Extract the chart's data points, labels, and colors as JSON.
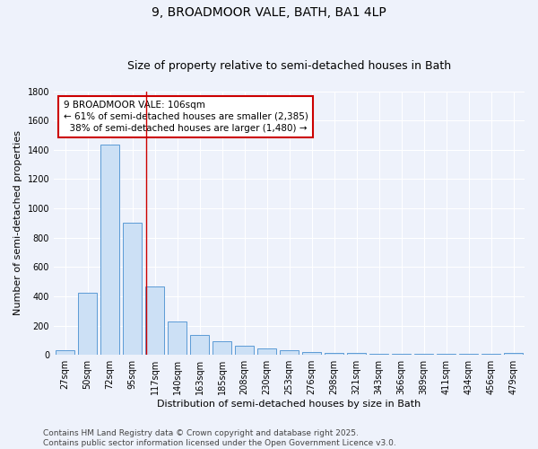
{
  "title": "9, BROADMOOR VALE, BATH, BA1 4LP",
  "subtitle": "Size of property relative to semi-detached houses in Bath",
  "xlabel": "Distribution of semi-detached houses by size in Bath",
  "ylabel": "Number of semi-detached properties",
  "bar_labels": [
    "27sqm",
    "50sqm",
    "72sqm",
    "95sqm",
    "117sqm",
    "140sqm",
    "163sqm",
    "185sqm",
    "208sqm",
    "230sqm",
    "253sqm",
    "276sqm",
    "298sqm",
    "321sqm",
    "343sqm",
    "366sqm",
    "389sqm",
    "411sqm",
    "434sqm",
    "456sqm",
    "479sqm"
  ],
  "bar_values": [
    30,
    425,
    1435,
    900,
    465,
    225,
    135,
    95,
    65,
    45,
    30,
    20,
    15,
    12,
    10,
    8,
    8,
    8,
    6,
    8,
    15
  ],
  "bar_color": "#cce0f5",
  "bar_edge_color": "#5b9bd5",
  "background_color": "#eef2fb",
  "grid_color": "#ffffff",
  "property_label": "9 BROADMOOR VALE: 106sqm",
  "pct_smaller": 61,
  "count_smaller": 2385,
  "pct_larger": 38,
  "count_larger": 1480,
  "vline_color": "#cc0000",
  "annotation_box_color": "#ffffff",
  "annotation_box_edge": "#cc0000",
  "ylim": [
    0,
    1800
  ],
  "footer_line1": "Contains HM Land Registry data © Crown copyright and database right 2025.",
  "footer_line2": "Contains public sector information licensed under the Open Government Licence v3.0.",
  "title_fontsize": 10,
  "subtitle_fontsize": 9,
  "axis_label_fontsize": 8,
  "tick_fontsize": 7,
  "annotation_fontsize": 7.5,
  "footer_fontsize": 6.5,
  "vline_x": 3.6
}
